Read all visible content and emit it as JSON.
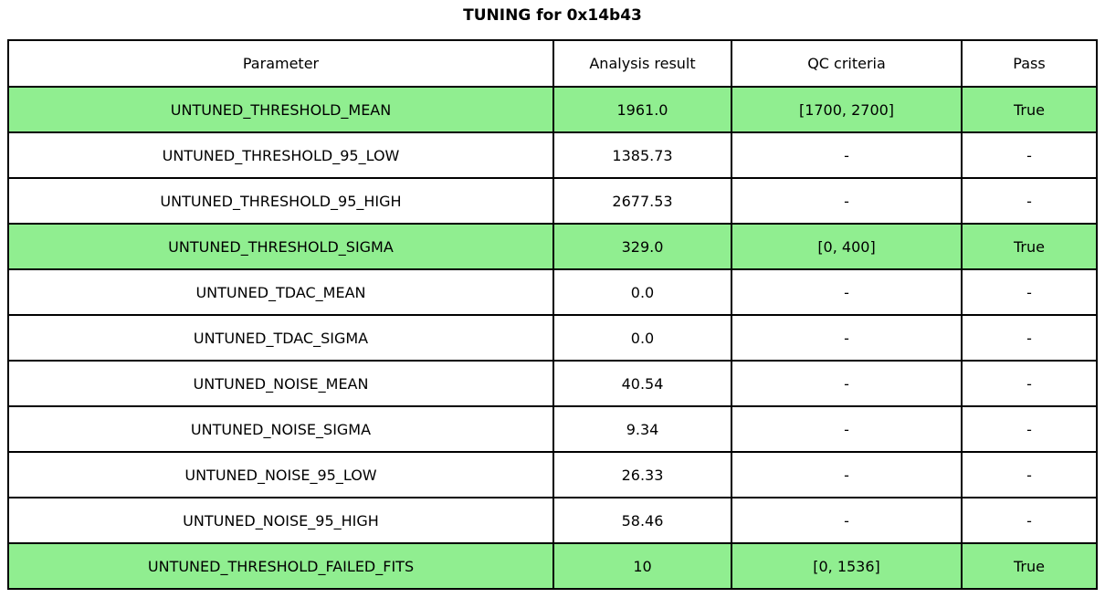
{
  "chart_data": {
    "type": "table",
    "title": "TUNING for 0x14b43",
    "columns": [
      "Parameter",
      "Analysis result",
      "QC criteria",
      "Pass"
    ],
    "rows": [
      {
        "parameter": "UNTUNED_THRESHOLD_MEAN",
        "result": "1961.0",
        "qc": "[1700, 2700]",
        "pass": "True",
        "highlight": true
      },
      {
        "parameter": "UNTUNED_THRESHOLD_95_LOW",
        "result": "1385.73",
        "qc": "-",
        "pass": "-",
        "highlight": false
      },
      {
        "parameter": "UNTUNED_THRESHOLD_95_HIGH",
        "result": "2677.53",
        "qc": "-",
        "pass": "-",
        "highlight": false
      },
      {
        "parameter": "UNTUNED_THRESHOLD_SIGMA",
        "result": "329.0",
        "qc": "[0, 400]",
        "pass": "True",
        "highlight": true
      },
      {
        "parameter": "UNTUNED_TDAC_MEAN",
        "result": "0.0",
        "qc": "-",
        "pass": "-",
        "highlight": false
      },
      {
        "parameter": "UNTUNED_TDAC_SIGMA",
        "result": "0.0",
        "qc": "-",
        "pass": "-",
        "highlight": false
      },
      {
        "parameter": "UNTUNED_NOISE_MEAN",
        "result": "40.54",
        "qc": "-",
        "pass": "-",
        "highlight": false
      },
      {
        "parameter": "UNTUNED_NOISE_SIGMA",
        "result": "9.34",
        "qc": "-",
        "pass": "-",
        "highlight": false
      },
      {
        "parameter": "UNTUNED_NOISE_95_LOW",
        "result": "26.33",
        "qc": "-",
        "pass": "-",
        "highlight": false
      },
      {
        "parameter": "UNTUNED_NOISE_95_HIGH",
        "result": "58.46",
        "qc": "-",
        "pass": "-",
        "highlight": false
      },
      {
        "parameter": "UNTUNED_THRESHOLD_FAILED_FITS",
        "result": "10",
        "qc": "[0, 1536]",
        "pass": "True",
        "highlight": true
      }
    ],
    "layout": {
      "grid": true,
      "highlight_meaning": "row passed QC criteria"
    }
  },
  "colors": {
    "highlight": "#90ee90",
    "border": "#000000",
    "background": "#ffffff",
    "text": "#000000"
  }
}
